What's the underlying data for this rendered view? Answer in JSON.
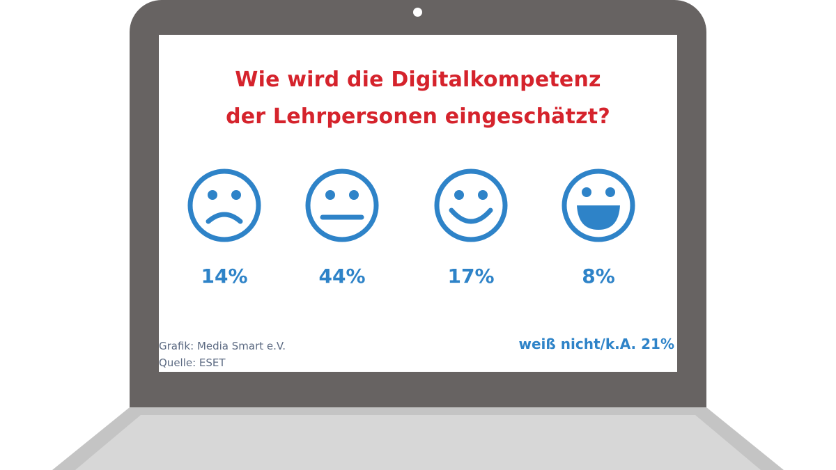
{
  "colors": {
    "title": "#d5232c",
    "accent": "#2e83c8",
    "laptop_frame": "#676362",
    "laptop_base": "#c4c4c4",
    "laptop_base_shadow": "#aaaaaa",
    "credit_text": "#5c6a82"
  },
  "title_lines": [
    "Wie wird die Digitalkompetenz",
    "der Lehrpersonen eingeschätzt?"
  ],
  "chart_data": {
    "type": "bar",
    "title": "Wie wird die Digitalkompetenz der Lehrpersonen eingeschätzt?",
    "categories": [
      "sad-face-icon",
      "neutral-face-icon",
      "smile-face-icon",
      "laughing-face-icon"
    ],
    "values": [
      14,
      44,
      17,
      8
    ],
    "value_labels": [
      "14%",
      "44%",
      "17%",
      "8%"
    ],
    "unit": "%",
    "extra": {
      "label": "weiß nicht/k.A. 21%",
      "value": 21
    }
  },
  "credits": {
    "graphic": "Grafik: Media Smart e.V.",
    "source": "Quelle: ESET"
  }
}
